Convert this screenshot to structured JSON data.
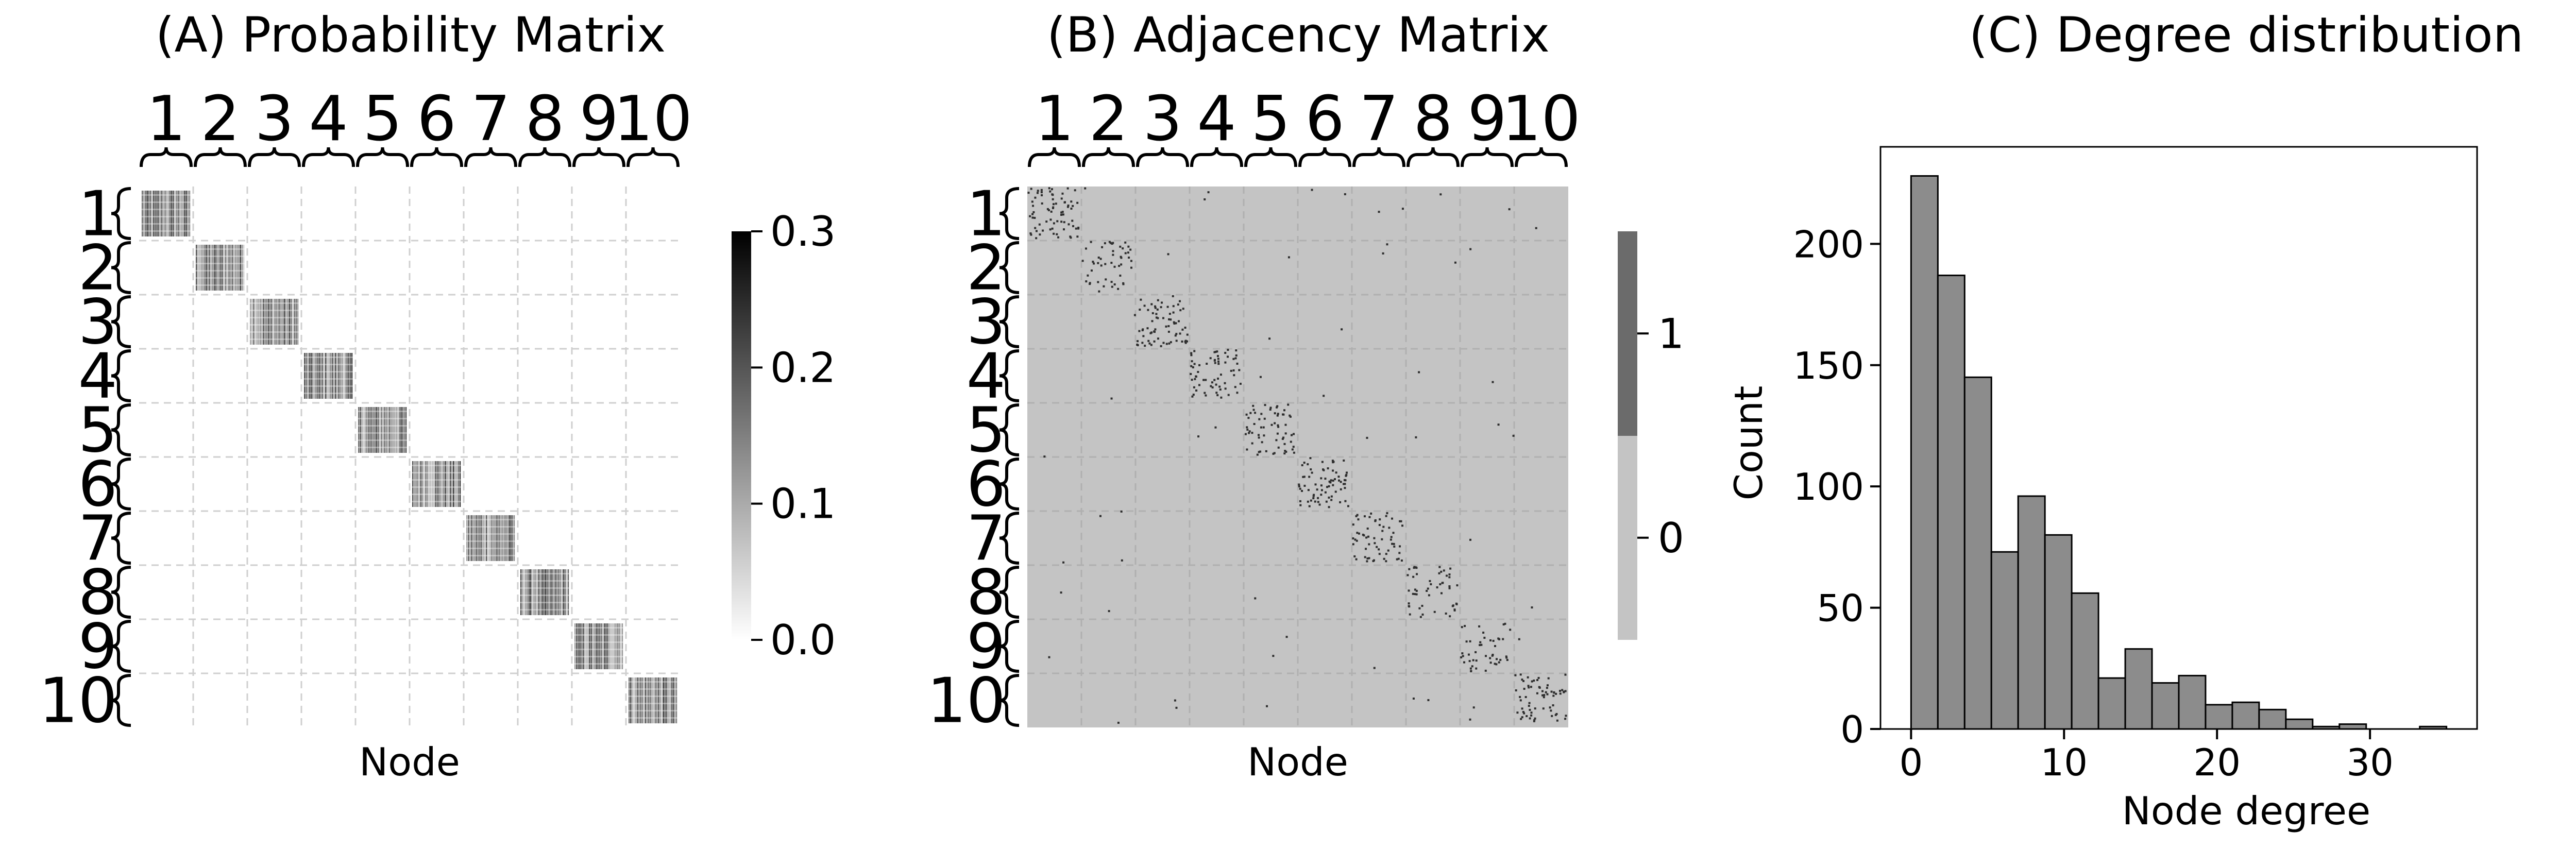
{
  "panels": [
    {
      "id": "A",
      "type": "heatmap",
      "title": "(A) Probability Matrix",
      "xlabel": "Node",
      "block_labels": [
        "1",
        "2",
        "3",
        "4",
        "5",
        "6",
        "7",
        "8",
        "9",
        "10"
      ],
      "grid": true,
      "colorbar": {
        "ticks": [
          "0.0",
          "0.1",
          "0.2",
          "0.3"
        ],
        "range": [
          0,
          0.3
        ],
        "colors": [
          "#ffffff",
          "#000000"
        ]
      }
    },
    {
      "id": "B",
      "type": "heatmap",
      "title": "(B) Adjacency Matrix",
      "xlabel": "Node",
      "block_labels": [
        "1",
        "2",
        "3",
        "4",
        "5",
        "6",
        "7",
        "8",
        "9",
        "10"
      ],
      "grid": true,
      "colorbar": {
        "ticks": [
          "0",
          "1"
        ],
        "range": [
          0,
          1
        ],
        "colors": [
          "#c4c4c4",
          "#6b6b6b"
        ]
      }
    }
  ],
  "chart_data": {
    "type": "bar",
    "title": "(C) Degree distribution",
    "xlabel": "Node degree",
    "ylabel": "Count",
    "xlim": [
      -2,
      37
    ],
    "ylim": [
      0,
      240
    ],
    "xticks": [
      0,
      10,
      20,
      30
    ],
    "yticks": [
      0,
      50,
      100,
      150,
      200
    ],
    "bin_width": 1.75,
    "bin_start": 0,
    "values": [
      228,
      187,
      145,
      73,
      96,
      80,
      56,
      21,
      33,
      19,
      22,
      10,
      11,
      8,
      4,
      1,
      2,
      0,
      0,
      1
    ],
    "bar_color": "#8c8c8c",
    "edge_color": "#000000"
  }
}
